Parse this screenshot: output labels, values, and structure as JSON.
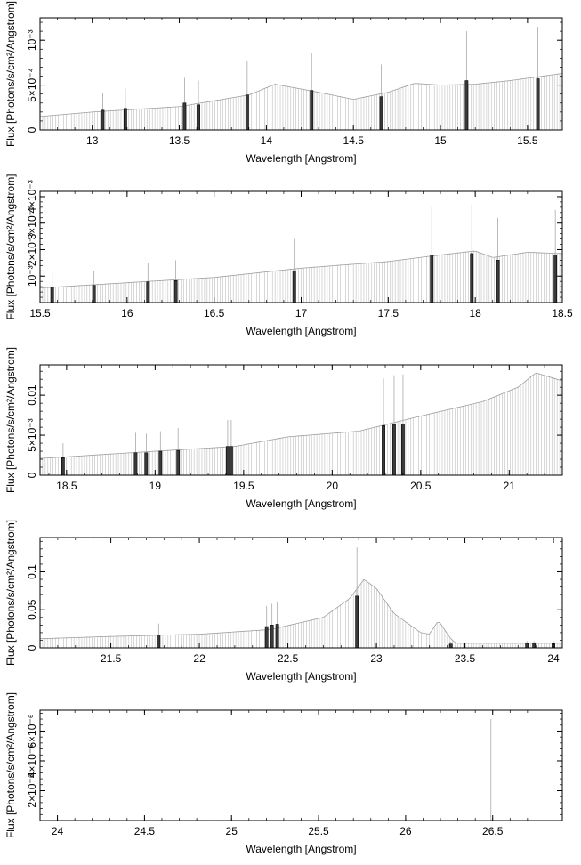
{
  "chart_data": [
    {
      "type": "bar",
      "xlabel": "Wavelength [Angstrom]",
      "ylabel": "Flux [Photons/s/cm²/Angstrom]",
      "xlim": [
        12.7,
        15.7
      ],
      "ylim": [
        0,
        0.00125
      ],
      "x_ticks": [
        13,
        13.5,
        14,
        14.5,
        15,
        15.5
      ],
      "x_tick_labels": [
        "13",
        "13.5",
        "14",
        "14.5",
        "15",
        "15.5"
      ],
      "y_ticks": [
        0,
        0.0005,
        0.001
      ],
      "y_tick_labels": [
        "0",
        "5×10⁻⁴",
        "10⁻³"
      ],
      "continuum": [
        [
          12.7,
          0.00015
        ],
        [
          13.0,
          0.0002
        ],
        [
          13.5,
          0.00026
        ],
        [
          13.9,
          0.00039
        ],
        [
          14.05,
          0.00051
        ],
        [
          14.3,
          0.00042
        ],
        [
          14.5,
          0.00034
        ],
        [
          14.7,
          0.00042
        ],
        [
          14.85,
          0.00052
        ],
        [
          15.0,
          0.0005
        ],
        [
          15.2,
          0.00051
        ],
        [
          15.4,
          0.00055
        ],
        [
          15.7,
          0.00063
        ]
      ],
      "lines": [
        {
          "x": 13.06,
          "y": 0.00022,
          "err": 0.00041
        },
        {
          "x": 13.19,
          "y": 0.00024,
          "err": 0.00046
        },
        {
          "x": 13.53,
          "y": 0.0003,
          "err": 0.00058
        },
        {
          "x": 13.61,
          "y": 0.00028,
          "err": 0.00055
        },
        {
          "x": 13.89,
          "y": 0.00039,
          "err": 0.00077
        },
        {
          "x": 14.26,
          "y": 0.00044,
          "err": 0.00086
        },
        {
          "x": 14.66,
          "y": 0.00037,
          "err": 0.00073
        },
        {
          "x": 15.15,
          "y": 0.00055,
          "err": 0.0011
        },
        {
          "x": 15.56,
          "y": 0.00057,
          "err": 0.00115
        }
      ]
    },
    {
      "type": "bar",
      "xlabel": "Wavelength [Angstrom]",
      "ylabel": "Flux [Photons/s/cm²/Angstrom]",
      "xlim": [
        15.5,
        18.5
      ],
      "ylim": [
        0,
        0.0042
      ],
      "x_ticks": [
        15.5,
        16,
        16.5,
        17,
        17.5,
        18,
        18.5
      ],
      "x_tick_labels": [
        "15.5",
        "16",
        "16.5",
        "17",
        "17.5",
        "18",
        "18.5"
      ],
      "y_ticks": [
        0.001,
        0.002,
        0.003,
        0.004
      ],
      "y_tick_labels": [
        "10⁻³",
        "2×10⁻³",
        "3×10⁻³",
        "4×10⁻³"
      ],
      "continuum": [
        [
          15.5,
          0.00055
        ],
        [
          16.0,
          0.00075
        ],
        [
          16.5,
          0.00095
        ],
        [
          17.0,
          0.0013
        ],
        [
          17.5,
          0.00155
        ],
        [
          17.8,
          0.0018
        ],
        [
          18.0,
          0.00195
        ],
        [
          18.1,
          0.0017
        ],
        [
          18.3,
          0.0019
        ],
        [
          18.5,
          0.00185
        ]
      ],
      "lines": [
        {
          "x": 15.57,
          "y": 0.00058,
          "err": 0.0011
        },
        {
          "x": 15.81,
          "y": 0.00065,
          "err": 0.0012
        },
        {
          "x": 16.12,
          "y": 0.00078,
          "err": 0.0015
        },
        {
          "x": 16.28,
          "y": 0.00083,
          "err": 0.0016
        },
        {
          "x": 16.96,
          "y": 0.0012,
          "err": 0.0024
        },
        {
          "x": 17.75,
          "y": 0.0018,
          "err": 0.0036
        },
        {
          "x": 17.98,
          "y": 0.00185,
          "err": 0.0037
        },
        {
          "x": 18.13,
          "y": 0.0016,
          "err": 0.0032
        },
        {
          "x": 18.46,
          "y": 0.0018,
          "err": 0.0035
        }
      ]
    },
    {
      "type": "bar",
      "xlabel": "Wavelength [Angstrom]",
      "ylabel": "Flux [Photons/s/cm²/Angstrom]",
      "xlim": [
        18.35,
        21.3
      ],
      "ylim": [
        0,
        0.0138
      ],
      "x_ticks": [
        18.5,
        19,
        19.5,
        20,
        20.5,
        21
      ],
      "x_tick_labels": [
        "18.5",
        "19",
        "19.5",
        "20",
        "20.5",
        "21"
      ],
      "y_ticks": [
        0,
        0.005,
        0.01
      ],
      "y_tick_labels": [
        "0",
        "5×10⁻³",
        "0.01"
      ],
      "continuum": [
        [
          18.35,
          0.0021
        ],
        [
          18.5,
          0.0023
        ],
        [
          19.0,
          0.003
        ],
        [
          19.45,
          0.0036
        ],
        [
          19.75,
          0.0048
        ],
        [
          20.15,
          0.0055
        ],
        [
          20.5,
          0.0074
        ],
        [
          20.85,
          0.0092
        ],
        [
          21.05,
          0.011
        ],
        [
          21.15,
          0.0128
        ],
        [
          21.3,
          0.0118
        ]
      ],
      "lines": [
        {
          "x": 18.48,
          "y": 0.0022,
          "err": 0.004
        },
        {
          "x": 18.89,
          "y": 0.0028,
          "err": 0.0053
        },
        {
          "x": 18.95,
          "y": 0.0028,
          "err": 0.0052
        },
        {
          "x": 19.03,
          "y": 0.003,
          "err": 0.0055
        },
        {
          "x": 19.13,
          "y": 0.0031,
          "err": 0.0059
        },
        {
          "x": 19.41,
          "y": 0.0036,
          "err": 0.0069
        },
        {
          "x": 19.43,
          "y": 0.0036,
          "err": 0.0069
        },
        {
          "x": 20.29,
          "y": 0.0062,
          "err": 0.0121
        },
        {
          "x": 20.35,
          "y": 0.0063,
          "err": 0.0125
        },
        {
          "x": 20.4,
          "y": 0.0064,
          "err": 0.0126
        }
      ]
    },
    {
      "type": "bar",
      "xlabel": "Wavelength [Angstrom]",
      "ylabel": "Flux [Photons/s/cm²/Angstrom]",
      "xlim": [
        21.1,
        24.05
      ],
      "ylim": [
        0,
        0.145
      ],
      "x_ticks": [
        21.5,
        22,
        22.5,
        23,
        23.5,
        24
      ],
      "x_tick_labels": [
        "21.5",
        "22",
        "22.5",
        "23",
        "23.5",
        "24"
      ],
      "y_ticks": [
        0,
        0.05,
        0.1
      ],
      "y_tick_labels": [
        "0",
        "0.05",
        "0.1"
      ],
      "continuum": [
        [
          21.1,
          0.012
        ],
        [
          21.5,
          0.015
        ],
        [
          22.0,
          0.018
        ],
        [
          22.4,
          0.024
        ],
        [
          22.7,
          0.04
        ],
        [
          22.85,
          0.065
        ],
        [
          22.93,
          0.09
        ],
        [
          23.0,
          0.078
        ],
        [
          23.1,
          0.045
        ],
        [
          23.25,
          0.02
        ],
        [
          23.3,
          0.018
        ],
        [
          23.35,
          0.036
        ],
        [
          23.42,
          0.012
        ],
        [
          23.45,
          0.006
        ],
        [
          24.05,
          0.006
        ]
      ],
      "lines": [
        {
          "x": 21.77,
          "y": 0.017,
          "err": 0.032
        },
        {
          "x": 22.38,
          "y": 0.028,
          "err": 0.055
        },
        {
          "x": 22.41,
          "y": 0.03,
          "err": 0.058
        },
        {
          "x": 22.44,
          "y": 0.031,
          "err": 0.06
        },
        {
          "x": 22.89,
          "y": 0.068,
          "err": 0.132
        },
        {
          "x": 23.42,
          "y": 0.005,
          "err": 0.008
        },
        {
          "x": 23.85,
          "y": 0.006,
          "err": 0.009
        },
        {
          "x": 23.89,
          "y": 0.006,
          "err": 0.009
        },
        {
          "x": 24.0,
          "y": 0.006,
          "err": 0.009
        }
      ]
    },
    {
      "type": "bar",
      "xlabel": "Wavelength [Angstrom]",
      "ylabel": "Flux [Photons/s/cm²/Angstrom]",
      "xlim": [
        23.9,
        26.9
      ],
      "ylim": [
        0,
        7.4e-06
      ],
      "x_ticks": [
        24,
        24.5,
        25,
        25.5,
        26,
        26.5
      ],
      "x_tick_labels": [
        "24",
        "24.5",
        "25",
        "25.5",
        "26",
        "26.5"
      ],
      "y_ticks": [
        2e-06,
        4e-06,
        6e-06
      ],
      "y_tick_labels": [
        "2×10⁻⁶",
        "4×10⁻⁶",
        "6×10⁻⁶"
      ],
      "continuum": [
        [
          23.9,
          0.0
        ],
        [
          26.9,
          0.0
        ]
      ],
      "lines": [
        {
          "x": 26.49,
          "y": 0.0,
          "err": 6.8e-06
        }
      ]
    }
  ]
}
